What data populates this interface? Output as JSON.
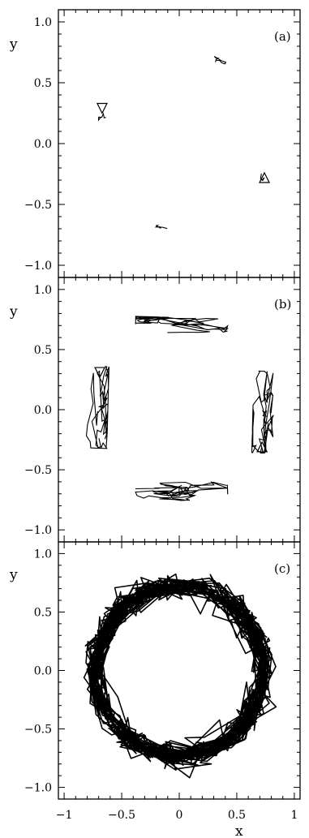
{
  "chart_data": [
    {
      "type": "line",
      "panel_label": "(a)",
      "ylabel": "y",
      "xlabel": "",
      "xlim": [
        -1.05,
        1.05
      ],
      "ylim": [
        -1.1,
        1.1
      ],
      "yticks": [
        1.0,
        0.5,
        0.0,
        -0.5,
        -1.0
      ],
      "ytick_labels": [
        "1.0",
        "0.5",
        "0.0",
        "-0.5",
        "-1.0"
      ],
      "clusters": [
        {
          "center": [
            0.3,
            0.68
          ],
          "along": 0.1,
          "across": 0.03,
          "points": 14
        },
        {
          "center": [
            -0.66,
            0.24
          ],
          "along": 0.07,
          "across": 0.02,
          "points": 8
        },
        {
          "center": [
            0.72,
            -0.24
          ],
          "along": 0.07,
          "across": 0.02,
          "points": 8
        },
        {
          "center": [
            -0.12,
            -0.68
          ],
          "along": 0.08,
          "across": 0.02,
          "points": 10
        }
      ],
      "markers": [
        {
          "shape": "triangle-down",
          "x": -0.67,
          "y": 0.29
        },
        {
          "shape": "triangle-up",
          "x": 0.74,
          "y": -0.28
        }
      ]
    },
    {
      "type": "line",
      "panel_label": "(b)",
      "ylabel": "y",
      "xlabel": "",
      "xlim": [
        -1.05,
        1.05
      ],
      "ylim": [
        -1.1,
        1.1
      ],
      "yticks": [
        1.0,
        0.5,
        0.0,
        -0.5,
        -1.0
      ],
      "ytick_labels": [
        "1.0",
        "0.5",
        "0.0",
        "-0.5",
        "-1.0"
      ],
      "clusters": [
        {
          "center": [
            0.02,
            0.69
          ],
          "along": 0.4,
          "across": 0.05,
          "points": 80
        },
        {
          "center": [
            -0.71,
            0.02
          ],
          "along": 0.34,
          "across": 0.06,
          "points": 80
        },
        {
          "center": [
            0.73,
            -0.02
          ],
          "along": 0.34,
          "across": 0.06,
          "points": 80
        },
        {
          "center": [
            0.02,
            -0.68
          ],
          "along": 0.4,
          "across": 0.05,
          "points": 80
        }
      ],
      "markers": [
        {
          "shape": "triangle-down",
          "x": -0.69,
          "y": 0.31
        },
        {
          "shape": "triangle-up",
          "x": 0.72,
          "y": -0.31
        }
      ]
    },
    {
      "type": "line",
      "panel_label": "(c)",
      "ylabel": "y",
      "xlabel": "x",
      "xlim": [
        -1.05,
        1.05
      ],
      "ylim": [
        -1.1,
        1.1
      ],
      "xticks": [
        -1,
        -0.5,
        0,
        0.5,
        1
      ],
      "xtick_labels": [
        "-1",
        "-0.5",
        "0",
        "0.5",
        "1"
      ],
      "yticks": [
        1.0,
        0.5,
        0.0,
        -0.5,
        -1.0
      ],
      "ytick_labels": [
        "1.0",
        "0.5",
        "0.0",
        "-0.5",
        "-1.0"
      ],
      "ring": {
        "radius": 0.73,
        "thickness": 0.1,
        "spread": 0.05,
        "points": 1400
      }
    }
  ]
}
